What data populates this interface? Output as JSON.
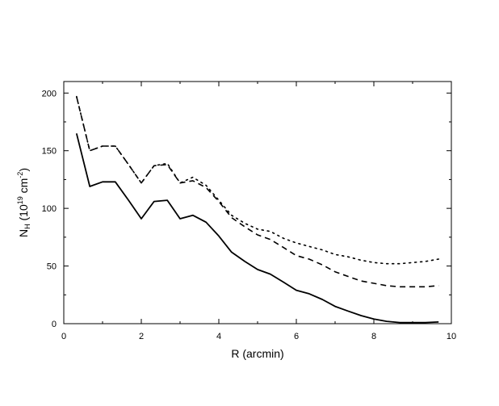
{
  "chart_data": {
    "type": "line",
    "xlabel": "R (arcmin)",
    "ylabel": {
      "prefix": "N",
      "sub": "H",
      "mid": " (10",
      "sup1": "19",
      "unit": " cm",
      "sup2": "-2",
      "suffix": ")"
    },
    "xlim": [
      0,
      10
    ],
    "ylim": [
      0,
      210
    ],
    "x_ticks": [
      "0",
      "2",
      "4",
      "6",
      "8",
      "10"
    ],
    "y_ticks": [
      "0",
      "50",
      "100",
      "150",
      "200"
    ],
    "grid": false,
    "x": [
      0.33,
      0.67,
      1.0,
      1.33,
      1.67,
      2.0,
      2.33,
      2.67,
      3.0,
      3.33,
      3.67,
      4.0,
      4.33,
      4.67,
      5.0,
      5.33,
      5.67,
      6.0,
      6.33,
      6.67,
      7.0,
      7.33,
      7.67,
      8.0,
      8.33,
      8.67,
      9.0,
      9.33,
      9.67
    ],
    "series": [
      {
        "style": "solid",
        "values": [
          165,
          119,
          123,
          123,
          107,
          91,
          106,
          107,
          91,
          94,
          88,
          76,
          62,
          54,
          47,
          43,
          36,
          29,
          26,
          21,
          15,
          11,
          7,
          4,
          2,
          1,
          1,
          1,
          1.5
        ]
      },
      {
        "style": "dashed",
        "values": [
          197,
          150,
          154,
          154,
          138,
          122,
          137,
          138,
          122,
          124,
          118,
          106,
          92,
          84,
          77,
          73,
          66,
          59,
          56,
          51,
          45,
          41,
          37,
          35,
          33,
          32,
          32,
          32,
          33
        ]
      },
      {
        "style": "dotted",
        "values": [
          197,
          150,
          154,
          154,
          138,
          122,
          137,
          139,
          122,
          127,
          120,
          107,
          94,
          87,
          82,
          80,
          74,
          70,
          67,
          64,
          60,
          58,
          55,
          53,
          52,
          52,
          53,
          54,
          56
        ]
      }
    ]
  }
}
